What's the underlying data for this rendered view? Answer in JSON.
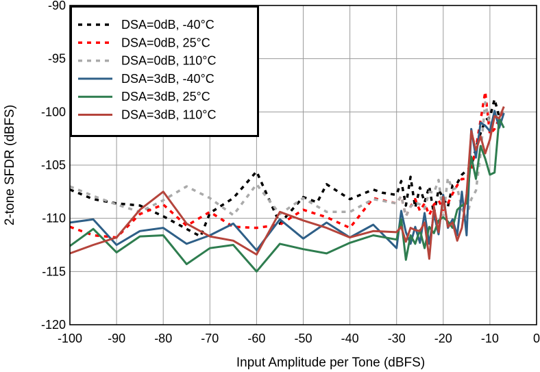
{
  "chart_data": {
    "type": "line",
    "title": "",
    "xlabel": "Input Amplitude per Tone (dBFS)",
    "ylabel": "2-tone SFDR (dBFS)",
    "xlim": [
      -100,
      0
    ],
    "ylim": [
      -120,
      -90
    ],
    "xticks": [
      -100,
      -90,
      -80,
      -70,
      -60,
      -50,
      -40,
      -30,
      -20,
      -10,
      0
    ],
    "yticks": [
      -90,
      -95,
      -100,
      -105,
      -110,
      -115,
      -120
    ],
    "x_tick_labels": [
      "-100",
      "-90",
      "-80",
      "-70",
      "-60",
      "-50",
      "-40",
      "-30",
      "-20",
      "-10",
      "0"
    ],
    "y_tick_labels": [
      "-90",
      "-95",
      "-100",
      "-105",
      "-110",
      "-115",
      "-120"
    ],
    "grid": true,
    "legend_position": "top-left",
    "series": [
      {
        "name": "DSA=0dB, -40°C",
        "color": "#000000",
        "dash": "dotted",
        "x": [
          -100,
          -95,
          -90,
          -85,
          -80,
          -75,
          -72,
          -70,
          -65,
          -60,
          -55,
          -50,
          -47,
          -45,
          -40,
          -35,
          -33,
          -30,
          -29,
          -28,
          -27,
          -26,
          -25,
          -24,
          -23,
          -22,
          -21,
          -20,
          -19,
          -18,
          -17,
          -16,
          -15,
          -14,
          -13,
          -12,
          -11,
          -10,
          -9,
          -8,
          -7
        ],
        "y": [
          -107.3,
          -108.2,
          -108.6,
          -108.8,
          -109.8,
          -111,
          -111.7,
          -109.5,
          -108.1,
          -105.6,
          -110.5,
          -108,
          -108.5,
          -106.8,
          -108.2,
          -107.3,
          -107.6,
          -107.8,
          -106.5,
          -108.8,
          -106.1,
          -109,
          -107.1,
          -108.5,
          -107,
          -109.6,
          -107.3,
          -108.1,
          -108.9,
          -106.9,
          -106.7,
          -105.9,
          -105.5,
          -105.1,
          -103.4,
          -102,
          -100.8,
          -100.5,
          -98.8,
          -100.5,
          -99.7
        ]
      },
      {
        "name": "DSA=0dB, 25°C",
        "color": "#ff0000",
        "dash": "dotted",
        "x": [
          -100,
          -95,
          -90,
          -85,
          -80,
          -75,
          -70,
          -65,
          -60,
          -55,
          -50,
          -45,
          -40,
          -35,
          -30,
          -29,
          -28,
          -27,
          -26,
          -25,
          -24,
          -23,
          -22,
          -21,
          -20,
          -19,
          -18,
          -17,
          -16,
          -15,
          -14,
          -13,
          -12,
          -11,
          -10,
          -9,
          -8,
          -7
        ],
        "y": [
          -110.8,
          -111.6,
          -111.8,
          -109.6,
          -108.7,
          -110.7,
          -109.4,
          -110.8,
          -110.9,
          -110.6,
          -109.2,
          -109.9,
          -110.9,
          -108.1,
          -108.6,
          -107.9,
          -109.8,
          -108.9,
          -108.2,
          -109.3,
          -108.6,
          -109.7,
          -108.7,
          -108.3,
          -109.2,
          -108.6,
          -107.7,
          -106.9,
          -106.3,
          -106.3,
          -105.4,
          -103.4,
          -100.8,
          -98.1,
          -102.1,
          -101.6,
          -100.6,
          -99.7
        ]
      },
      {
        "name": "DSA=0dB, 110°C",
        "color": "#aaaaaa",
        "dash": "dotted",
        "x": [
          -100,
          -95,
          -90,
          -85,
          -80,
          -75,
          -70,
          -65,
          -60,
          -55,
          -50,
          -45,
          -40,
          -35,
          -30,
          -29,
          -28,
          -27,
          -26,
          -25,
          -24,
          -23,
          -22,
          -21,
          -20,
          -19,
          -18,
          -17,
          -16,
          -15,
          -14,
          -13,
          -12,
          -11,
          -10,
          -9,
          -8,
          -7
        ],
        "y": [
          -107,
          -107.9,
          -108.7,
          -109.4,
          -108.3,
          -107,
          -108.1,
          -109.7,
          -106.8,
          -109.6,
          -108.1,
          -109.4,
          -109.4,
          -108.2,
          -108.6,
          -107.9,
          -109.8,
          -108.9,
          -108.5,
          -108.7,
          -109.1,
          -107.5,
          -107.6,
          -106.4,
          -109.8,
          -106.2,
          -107.3,
          -107.1,
          -109.1,
          -109.9,
          -108.2,
          -107.4,
          -103.9,
          -99.1,
          -101.3,
          -100.4,
          -100.5,
          -99.6
        ]
      },
      {
        "name": "DSA=3dB, -40°C",
        "color": "#2e5f87",
        "dash": "solid",
        "x": [
          -100,
          -95,
          -90,
          -85,
          -80,
          -75,
          -70,
          -65,
          -60,
          -55,
          -50,
          -45,
          -40,
          -35,
          -30,
          -29,
          -28,
          -27,
          -26,
          -25,
          -24,
          -23,
          -22,
          -21,
          -20,
          -19,
          -18,
          -17,
          -16,
          -15,
          -14,
          -13,
          -12,
          -11,
          -10,
          -9,
          -8,
          -7
        ],
        "y": [
          -110.4,
          -110.1,
          -112.5,
          -111.2,
          -110.9,
          -112.4,
          -111.6,
          -110.5,
          -113,
          -110.1,
          -111.9,
          -110.4,
          -111.8,
          -110.6,
          -112.8,
          -109.3,
          -111.3,
          -112.4,
          -110.8,
          -112.3,
          -109.5,
          -112.4,
          -109.6,
          -111.5,
          -107.8,
          -110.9,
          -110.1,
          -111.6,
          -107.5,
          -111.6,
          -101.6,
          -104.3,
          -101,
          -101.3,
          -101.8,
          -99.9,
          -101.5,
          -100.1
        ]
      },
      {
        "name": "DSA=3dB, 25°C",
        "color": "#2e7d4f",
        "dash": "solid",
        "x": [
          -100,
          -95,
          -90,
          -85,
          -80,
          -75,
          -70,
          -65,
          -60,
          -55,
          -50,
          -45,
          -40,
          -35,
          -30,
          -29,
          -28,
          -27,
          -26,
          -25,
          -24,
          -23,
          -22,
          -21,
          -20,
          -19,
          -18,
          -17,
          -16,
          -15,
          -14,
          -13,
          -12,
          -11,
          -10,
          -9,
          -8,
          -7
        ],
        "y": [
          -112.6,
          -111,
          -113.2,
          -111.7,
          -111.6,
          -114.3,
          -112.8,
          -112.5,
          -115,
          -112.4,
          -112.9,
          -113.3,
          -112.3,
          -111.6,
          -112,
          -110.1,
          -113.9,
          -111.6,
          -112.4,
          -111.1,
          -112.8,
          -110.8,
          -111.4,
          -110.2,
          -109.9,
          -110.3,
          -110.9,
          -109.2,
          -108.8,
          -108.6,
          -104.2,
          -106.3,
          -103.2,
          -104.4,
          -105.9,
          -105.7,
          -100.6,
          -101.5
        ]
      },
      {
        "name": "DSA=3dB, 110°C",
        "color": "#b5443b",
        "dash": "solid",
        "x": [
          -100,
          -95,
          -90,
          -85,
          -80,
          -75,
          -70,
          -65,
          -60,
          -55,
          -50,
          -45,
          -40,
          -35,
          -30,
          -29,
          -28,
          -27,
          -26,
          -25,
          -24,
          -23,
          -22,
          -21,
          -20,
          -19,
          -18,
          -17,
          -16,
          -15,
          -14,
          -13,
          -12,
          -11,
          -10,
          -9,
          -8,
          -7
        ],
        "y": [
          -113.3,
          -112.5,
          -111.8,
          -109.2,
          -107.5,
          -110.5,
          -111.7,
          -112.1,
          -113.4,
          -109.4,
          -110.2,
          -110.9,
          -111.8,
          -111.2,
          -111.3,
          -110.8,
          -112.2,
          -110.9,
          -111.1,
          -111.2,
          -110.4,
          -113.8,
          -108.9,
          -111.3,
          -108,
          -110.8,
          -110.4,
          -112.1,
          -110.9,
          -107.7,
          -101.8,
          -103.6,
          -102.3,
          -103.9,
          -102.6,
          -100.4,
          -100.6,
          -99.5
        ]
      }
    ]
  }
}
